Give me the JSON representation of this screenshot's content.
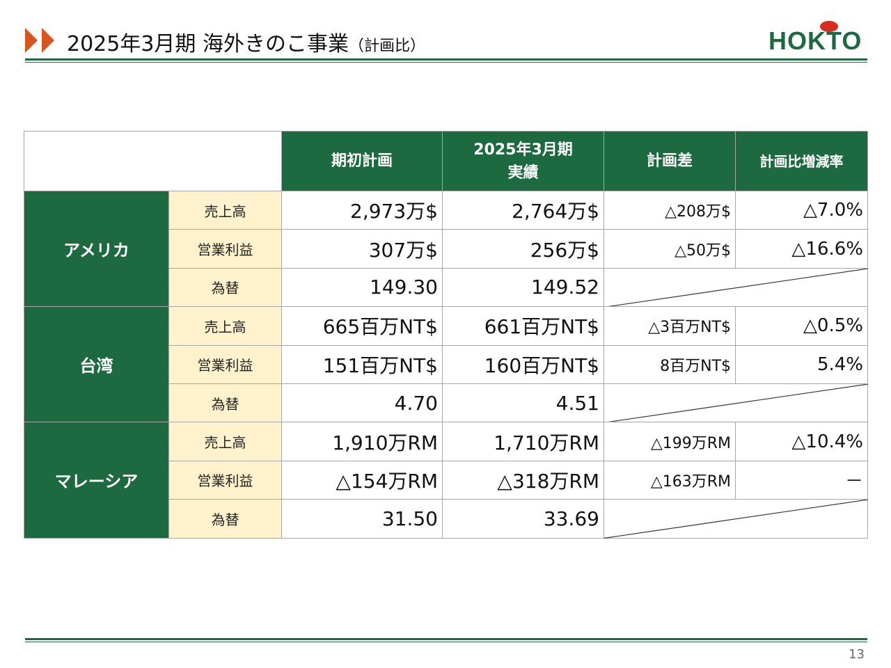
{
  "header": {
    "title": "2025年3月期 海外きのこ事業",
    "title_note": "（計画比）",
    "logo": "HOKTO"
  },
  "table": {
    "columns": [
      [
        "期初計画"
      ],
      [
        "2025年3月期",
        "実績"
      ],
      [
        "計画差"
      ],
      [
        "計画比増減率"
      ]
    ],
    "groups": [
      {
        "name": "アメリカ",
        "rows": [
          {
            "label": "売上高",
            "cells": [
              "2,973万$",
              "2,764万$",
              "△208万$",
              "△7.0%"
            ]
          },
          {
            "label": "営業利益",
            "cells": [
              "307万$",
              "256万$",
              "△50万$",
              "△16.6%"
            ]
          },
          {
            "label": "為替",
            "cells": [
              "149.30",
              "149.52"
            ]
          }
        ]
      },
      {
        "name": "台湾",
        "rows": [
          {
            "label": "売上高",
            "cells": [
              "665百万NT$",
              "661百万NT$",
              "△3百万NT$",
              "△0.5%"
            ]
          },
          {
            "label": "営業利益",
            "cells": [
              "151百万NT$",
              "160百万NT$",
              "8百万NT$",
              "5.4%"
            ]
          },
          {
            "label": "為替",
            "cells": [
              "4.70",
              "4.51"
            ]
          }
        ]
      },
      {
        "name": "マレーシア",
        "rows": [
          {
            "label": "売上高",
            "cells": [
              "1,910万RM",
              "1,710万RM",
              "△199万RM",
              "△10.4%"
            ]
          },
          {
            "label": "営業利益",
            "cells": [
              "△154万RM",
              "△318万RM",
              "△163万RM",
              "－"
            ]
          },
          {
            "label": "為替",
            "cells": [
              "31.50",
              "33.69"
            ]
          }
        ]
      }
    ]
  },
  "page_number": "13"
}
